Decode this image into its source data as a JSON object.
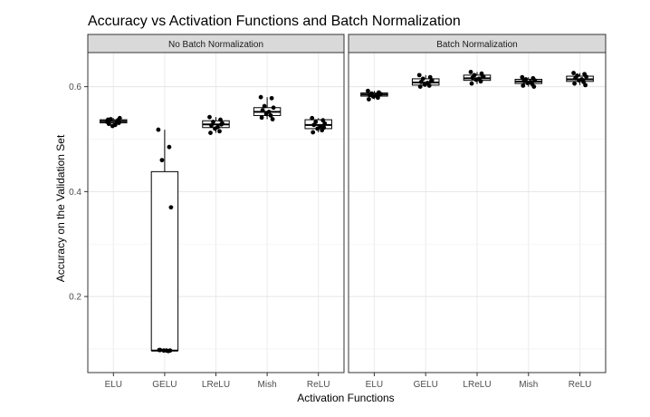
{
  "chart_data": {
    "type": "boxplot",
    "title": "Accuracy vs Activation Functions and Batch Normalization",
    "xlabel": "Activation Functions",
    "ylabel": "Accuracy on the Validation Set",
    "ylim": [
      0.055,
      0.665
    ],
    "yticks": [
      0.2,
      0.4,
      0.6
    ],
    "ytick_labels": [
      "0.2",
      "0.4",
      "0.6"
    ],
    "categories": [
      "ELU",
      "GELU",
      "LReLU",
      "Mish",
      "ReLU"
    ],
    "grid": true,
    "panels": [
      {
        "label": "No Batch Normalization",
        "boxes": [
          {
            "q1": 0.531,
            "median": 0.534,
            "q3": 0.537,
            "whisker_low": 0.525,
            "whisker_high": 0.54
          },
          {
            "q1": 0.097,
            "median": 0.097,
            "q3": 0.438,
            "whisker_low": 0.097,
            "whisker_high": 0.518
          },
          {
            "q1": 0.522,
            "median": 0.528,
            "q3": 0.535,
            "whisker_low": 0.512,
            "whisker_high": 0.542
          },
          {
            "q1": 0.545,
            "median": 0.552,
            "q3": 0.56,
            "whisker_low": 0.538,
            "whisker_high": 0.58
          },
          {
            "q1": 0.52,
            "median": 0.527,
            "q3": 0.537,
            "whisker_low": 0.513,
            "whisker_high": 0.54
          }
        ],
        "points": [
          [
            0.533,
            0.536,
            0.538,
            0.54,
            0.529,
            0.527,
            0.525,
            0.532,
            0.537,
            0.531
          ],
          [
            0.518,
            0.485,
            0.46,
            0.37,
            0.098,
            0.097,
            0.097,
            0.096,
            0.098,
            0.097
          ],
          [
            0.542,
            0.537,
            0.533,
            0.53,
            0.526,
            0.523,
            0.52,
            0.515,
            0.512,
            0.528
          ],
          [
            0.58,
            0.578,
            0.563,
            0.56,
            0.555,
            0.552,
            0.548,
            0.545,
            0.541,
            0.538
          ],
          [
            0.54,
            0.536,
            0.533,
            0.53,
            0.527,
            0.524,
            0.52,
            0.517,
            0.513,
            0.522
          ]
        ]
      },
      {
        "label": "Batch Normalization",
        "boxes": [
          {
            "q1": 0.582,
            "median": 0.585,
            "q3": 0.588,
            "whisker_low": 0.576,
            "whisker_high": 0.592
          },
          {
            "q1": 0.603,
            "median": 0.608,
            "q3": 0.615,
            "whisker_low": 0.6,
            "whisker_high": 0.622
          },
          {
            "q1": 0.612,
            "median": 0.616,
            "q3": 0.622,
            "whisker_low": 0.605,
            "whisker_high": 0.628
          },
          {
            "q1": 0.606,
            "median": 0.61,
            "q3": 0.614,
            "whisker_low": 0.6,
            "whisker_high": 0.618
          },
          {
            "q1": 0.61,
            "median": 0.614,
            "q3": 0.62,
            "whisker_low": 0.603,
            "whisker_high": 0.626
          }
        ],
        "points": [
          [
            0.592,
            0.589,
            0.587,
            0.586,
            0.584,
            0.583,
            0.581,
            0.579,
            0.576,
            0.585
          ],
          [
            0.622,
            0.618,
            0.615,
            0.612,
            0.609,
            0.607,
            0.604,
            0.602,
            0.6,
            0.61
          ],
          [
            0.628,
            0.625,
            0.622,
            0.619,
            0.617,
            0.615,
            0.613,
            0.61,
            0.606,
            0.62
          ],
          [
            0.618,
            0.616,
            0.614,
            0.612,
            0.611,
            0.609,
            0.607,
            0.605,
            0.602,
            0.6
          ],
          [
            0.626,
            0.624,
            0.621,
            0.619,
            0.616,
            0.614,
            0.612,
            0.609,
            0.606,
            0.603
          ]
        ]
      }
    ]
  }
}
